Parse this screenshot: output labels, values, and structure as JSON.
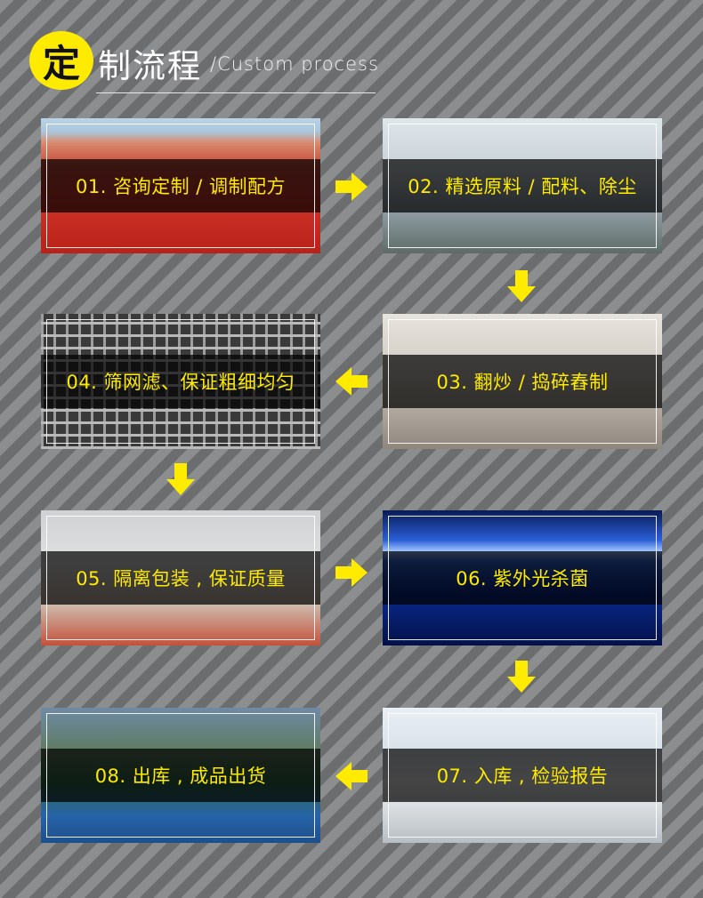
{
  "header": {
    "badge_char": "定",
    "title_rest": "制流程",
    "subtitle": "/Custom process"
  },
  "steps": [
    {
      "label": "01. 咨询定制 / 调制配方"
    },
    {
      "label": "02. 精选原料 / 配料、除尘"
    },
    {
      "label": "03. 翻炒 / 捣碎舂制"
    },
    {
      "label": "04. 筛网滤、保证粗细均匀"
    },
    {
      "label": "05. 隔离包装 , 保证质量"
    },
    {
      "label": "06. 紫外光杀菌"
    },
    {
      "label": "07. 入库 , 检验报告"
    },
    {
      "label": "08. 出库 , 成品出货"
    }
  ],
  "colors": {
    "accent": "#ffeb00",
    "band": "#000000"
  }
}
